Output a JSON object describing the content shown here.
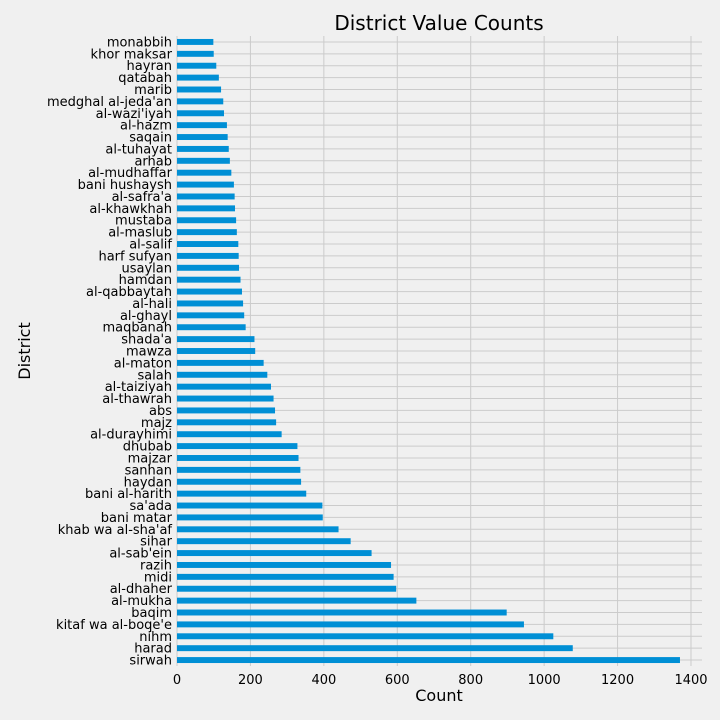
{
  "chart_data": {
    "type": "bar",
    "orientation": "horizontal",
    "title": "District Value Counts",
    "xlabel": "Count",
    "ylabel": "District",
    "xlim": [
      0,
      1430
    ],
    "xticks": [
      0,
      200,
      400,
      600,
      800,
      1000,
      1200,
      1400
    ],
    "grid": true,
    "bar_color": "#008fd5",
    "background_color": "#f0f0f0",
    "categories": [
      "sirwah",
      "harad",
      "nihm",
      "kitaf wa al-boqe'e",
      "baqim",
      "al-mukha",
      "al-dhaher",
      "midi",
      "razih",
      "al-sab'ein",
      "sihar",
      "khab wa al-sha'af",
      "bani matar",
      "sa'ada",
      "bani al-harith",
      "haydan",
      "sanhan",
      "majzar",
      "dhubab",
      "al-durayhimi",
      "majz",
      "abs",
      "al-thawrah",
      "al-taiziyah",
      "salah",
      "al-maton",
      "mawza",
      "shada'a",
      "maqbanah",
      "al-ghayl",
      "al-hali",
      "al-qabbaytah",
      "hamdan",
      "usaylan",
      "harf sufyan",
      "al-salif",
      "al-maslub",
      "mustaba",
      "al-khawkhah",
      "al-safra'a",
      "bani hushaysh",
      "al-mudhaffar",
      "arhab",
      "al-tuhayat",
      "saqain",
      "al-hazm",
      "al-wazi'iyah",
      "medghal al-jeda'an",
      "marib",
      "qatabah",
      "hayran",
      "khor maksar",
      "monabbih"
    ],
    "values": [
      1370,
      1078,
      1025,
      945,
      898,
      652,
      597,
      590,
      583,
      530,
      473,
      440,
      397,
      396,
      352,
      338,
      336,
      331,
      328,
      285,
      270,
      267,
      263,
      256,
      246,
      236,
      213,
      211,
      187,
      183,
      180,
      177,
      173,
      169,
      168,
      167,
      163,
      161,
      158,
      157,
      155,
      148,
      144,
      141,
      138,
      136,
      128,
      126,
      120,
      114,
      107,
      100,
      99
    ]
  }
}
